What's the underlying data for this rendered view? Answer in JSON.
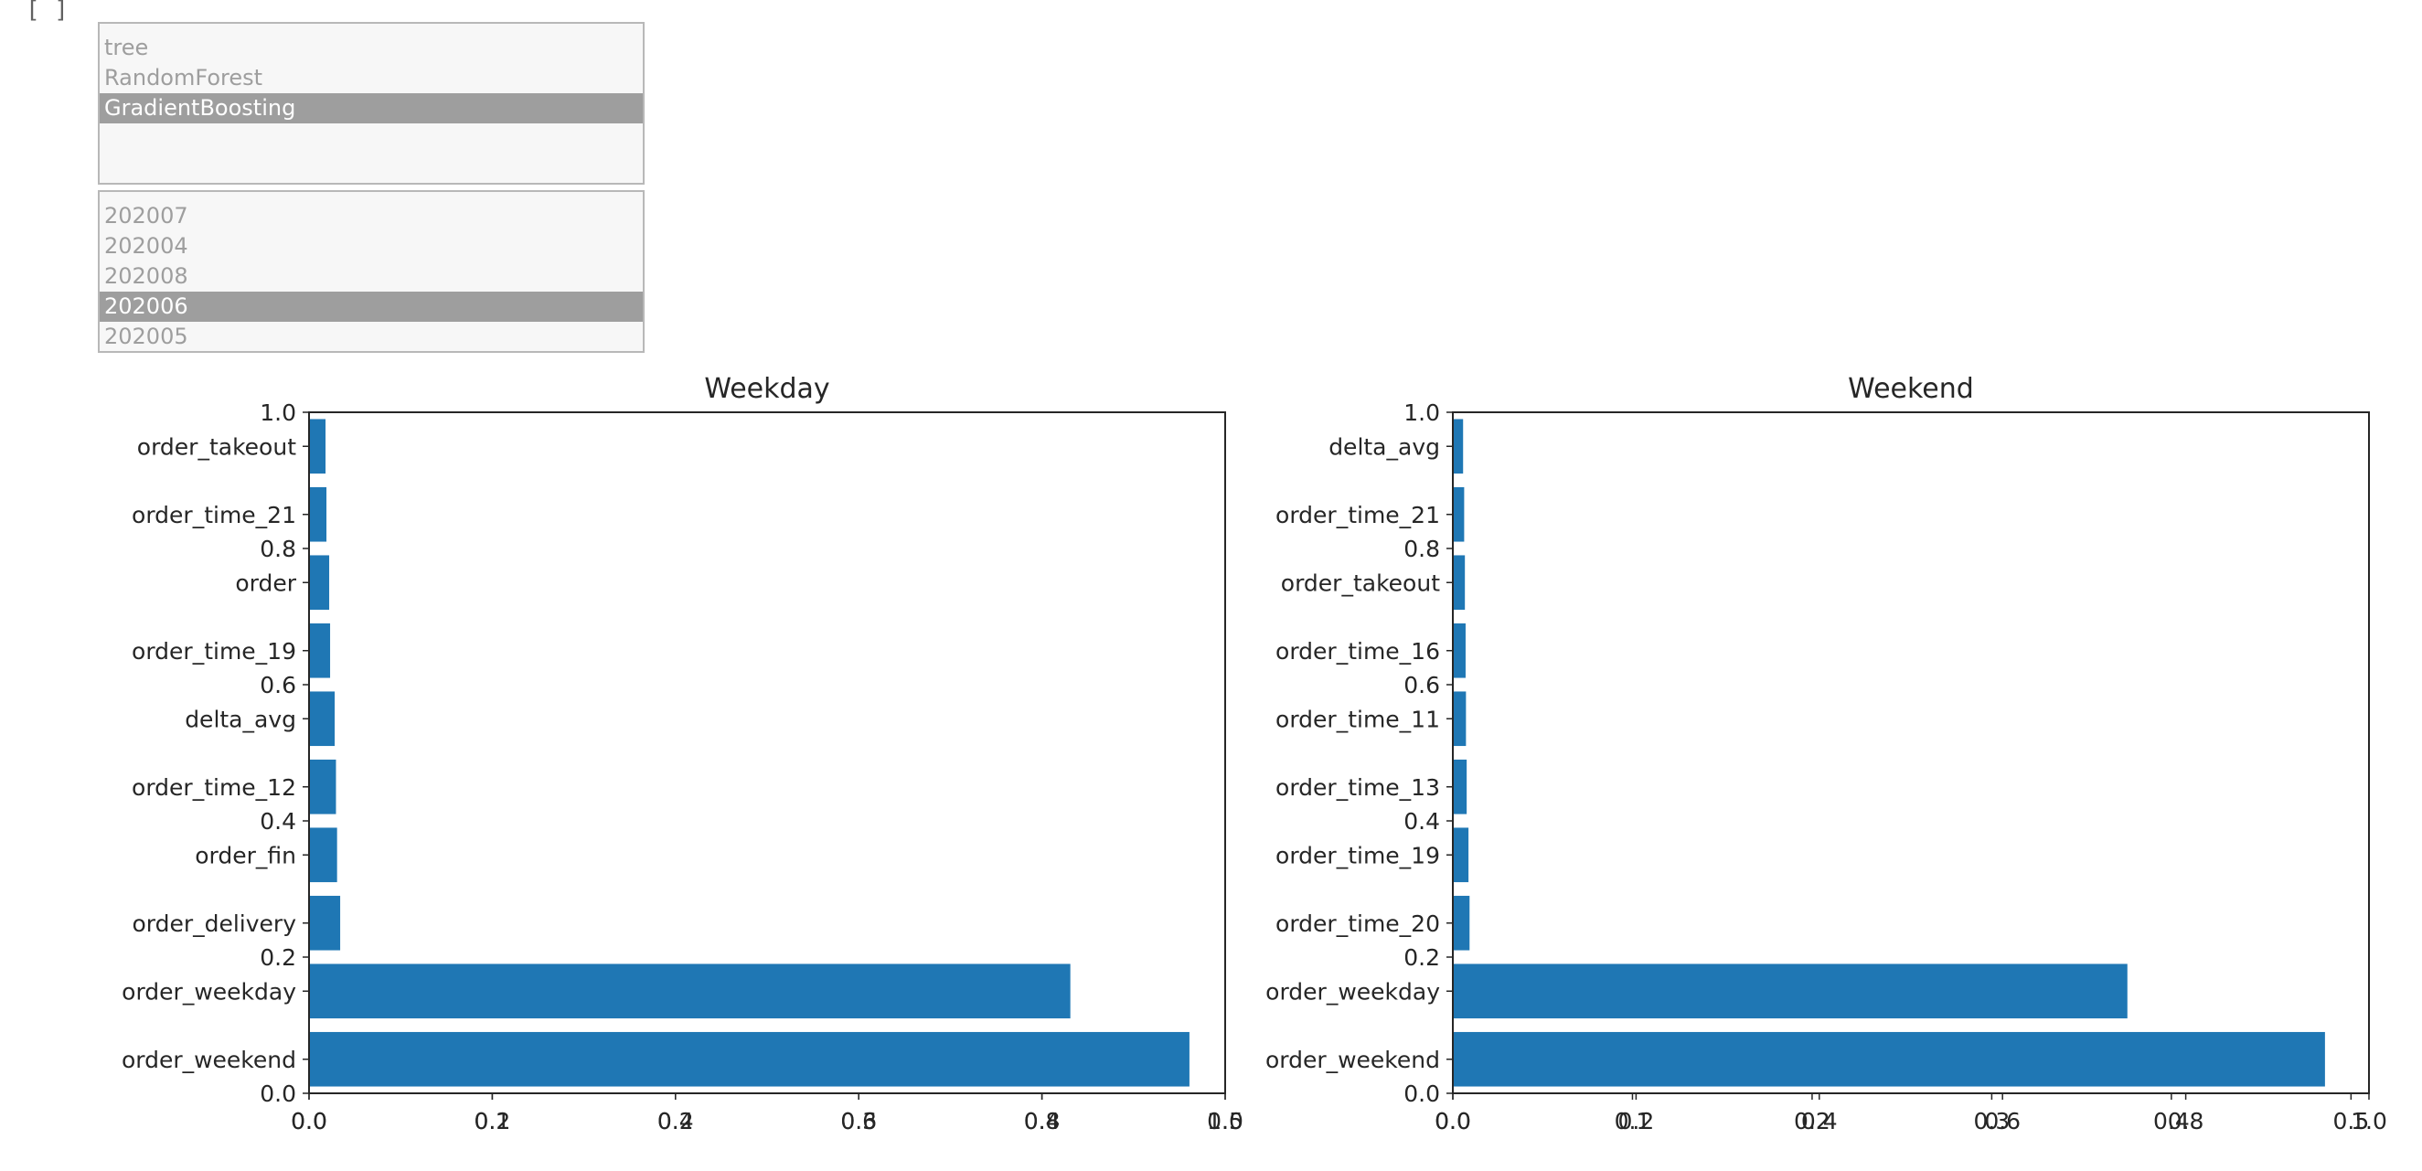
{
  "cell": {
    "prompt": "[ ]"
  },
  "model_select": {
    "options": [
      "tree",
      "RandomForest",
      "GradientBoosting"
    ],
    "selected_index": 2
  },
  "month_select": {
    "options": [
      "202007",
      "202004",
      "202008",
      "202006",
      "202005"
    ],
    "selected_index": 3
  },
  "chart_data": [
    {
      "type": "bar",
      "orientation": "horizontal",
      "title": "Weekday",
      "categories": [
        "order_weekend",
        "order_weekday",
        "order_delivery",
        "order_fin",
        "order_time_12",
        "delta_avg",
        "order_time_19",
        "order",
        "order_time_21",
        "order_takeout"
      ],
      "values": [
        0.48,
        0.415,
        0.0165,
        0.0148,
        0.0142,
        0.0135,
        0.011,
        0.0105,
        0.009,
        0.0085
      ],
      "xlim": [
        0,
        0.5
      ],
      "xticks": [
        "0.0",
        "0.1",
        "0.2",
        "0.3",
        "0.4",
        "0.5"
      ],
      "overlay_xticks": [
        "0.0",
        "0.2",
        "0.4",
        "0.6",
        "0.8",
        "1.0"
      ],
      "yticks": [
        "0.0",
        "0.2",
        "0.4",
        "0.6",
        "0.8",
        "1.0"
      ],
      "bar_color": "#1f77b4"
    },
    {
      "type": "bar",
      "orientation": "horizontal",
      "title": "Weekend",
      "categories": [
        "order_weekend",
        "order_weekday",
        "order_time_20",
        "order_time_19",
        "order_time_13",
        "order_time_11",
        "order_time_16",
        "order_takeout",
        "order_time_21",
        "delta_avg"
      ],
      "values": [
        0.485,
        0.375,
        0.0088,
        0.0082,
        0.0072,
        0.0068,
        0.0066,
        0.0062,
        0.0058,
        0.0052
      ],
      "xlim": [
        0,
        0.51
      ],
      "xticks": [
        "0.0",
        "0.1",
        "0.2",
        "0.3",
        "0.4",
        "0.5"
      ],
      "overlay_xticks": [
        "0.0",
        "0.2",
        "0.4",
        "0.6",
        "0.8",
        "1.0"
      ],
      "yticks": [
        "0.0",
        "0.2",
        "0.4",
        "0.6",
        "0.8",
        "1.0"
      ],
      "bar_color": "#1f77b4"
    }
  ]
}
